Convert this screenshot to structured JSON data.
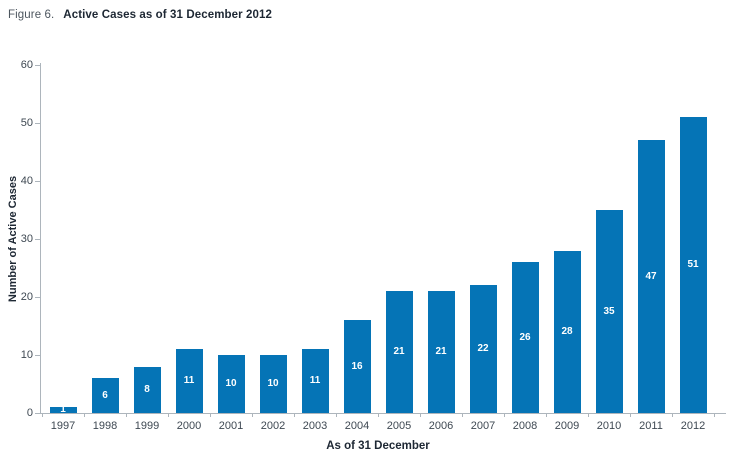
{
  "figure": {
    "prefix": "Figure 6.",
    "title": "Active Cases as of 31 December 2012"
  },
  "chart_data": {
    "type": "bar",
    "title": "Active Cases as of 31 December 2012",
    "categories": [
      "1997",
      "1998",
      "1999",
      "2000",
      "2001",
      "2002",
      "2003",
      "2004",
      "2005",
      "2006",
      "2007",
      "2008",
      "2009",
      "2010",
      "2011",
      "2012"
    ],
    "values": [
      1,
      6,
      8,
      11,
      10,
      10,
      11,
      16,
      21,
      21,
      22,
      26,
      28,
      35,
      47,
      51
    ],
    "xlabel": "As of 31 December",
    "ylabel": "Number of Active Cases",
    "ylim": [
      0,
      60
    ],
    "yticks": [
      0,
      10,
      20,
      30,
      40,
      50,
      60
    ],
    "grid": false,
    "legend": false,
    "bar_label_position": "centered inside bar, white bold"
  },
  "colors": {
    "bar": "#0574B6",
    "bar_label": "#FFFFFF",
    "axis_line": "#ADB5BC",
    "tick_text": "#3E4852",
    "title_text": "#1D2733",
    "figure_prefix": "#4D565F",
    "background": "#FFFFFF"
  }
}
